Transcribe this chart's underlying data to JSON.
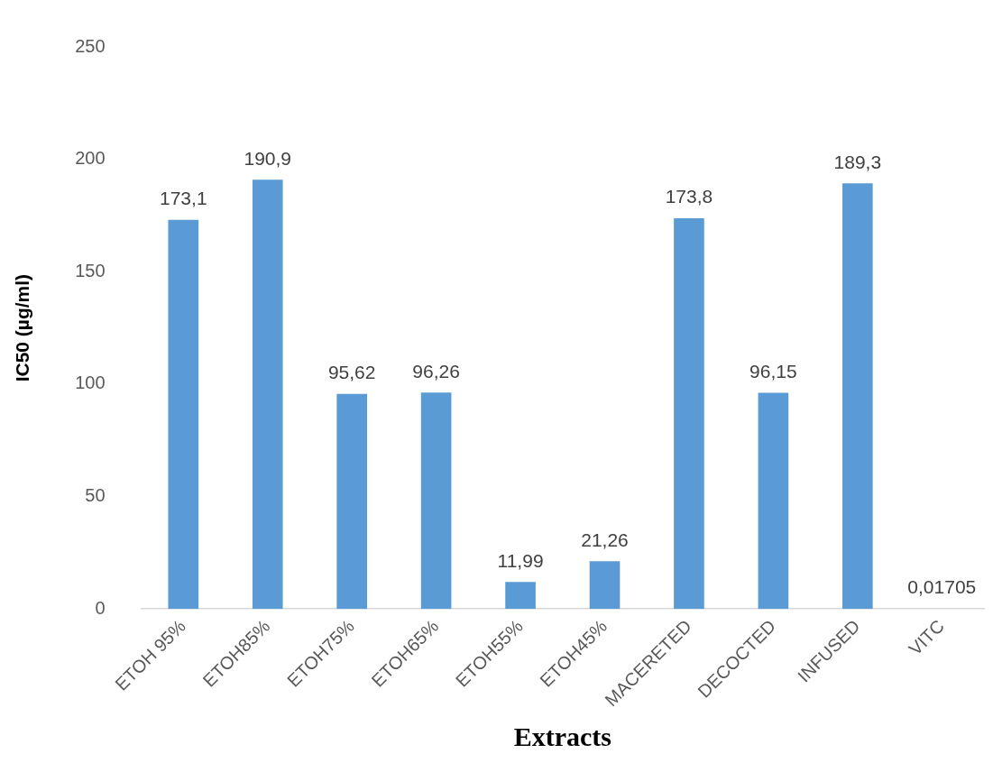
{
  "chart_data": {
    "type": "bar",
    "xlabel": "Extracts",
    "ylabel": "IC50 (µg/ml)",
    "categories": [
      "ETOH 95%",
      "ETOH85%",
      "ETOH75%",
      "ETOH65%",
      "ETOH55%",
      "ETOH45%",
      "MACERETED",
      "DECOCTED",
      "INFUSED",
      "VITC"
    ],
    "values": [
      173.1,
      190.9,
      95.62,
      96.26,
      11.99,
      21.26,
      173.8,
      96.15,
      189.3,
      0.01705
    ],
    "value_labels": [
      "173,1",
      "190,9",
      "95,62",
      "96,26",
      "11,99",
      "21,26",
      "173,8",
      "96,15",
      "189,3",
      "0,01705"
    ],
    "color": "#5b9bd5",
    "ylim": [
      0,
      250
    ],
    "yticks": [
      0,
      50,
      100,
      150,
      200,
      250
    ],
    "grid": false,
    "legend": false
  }
}
